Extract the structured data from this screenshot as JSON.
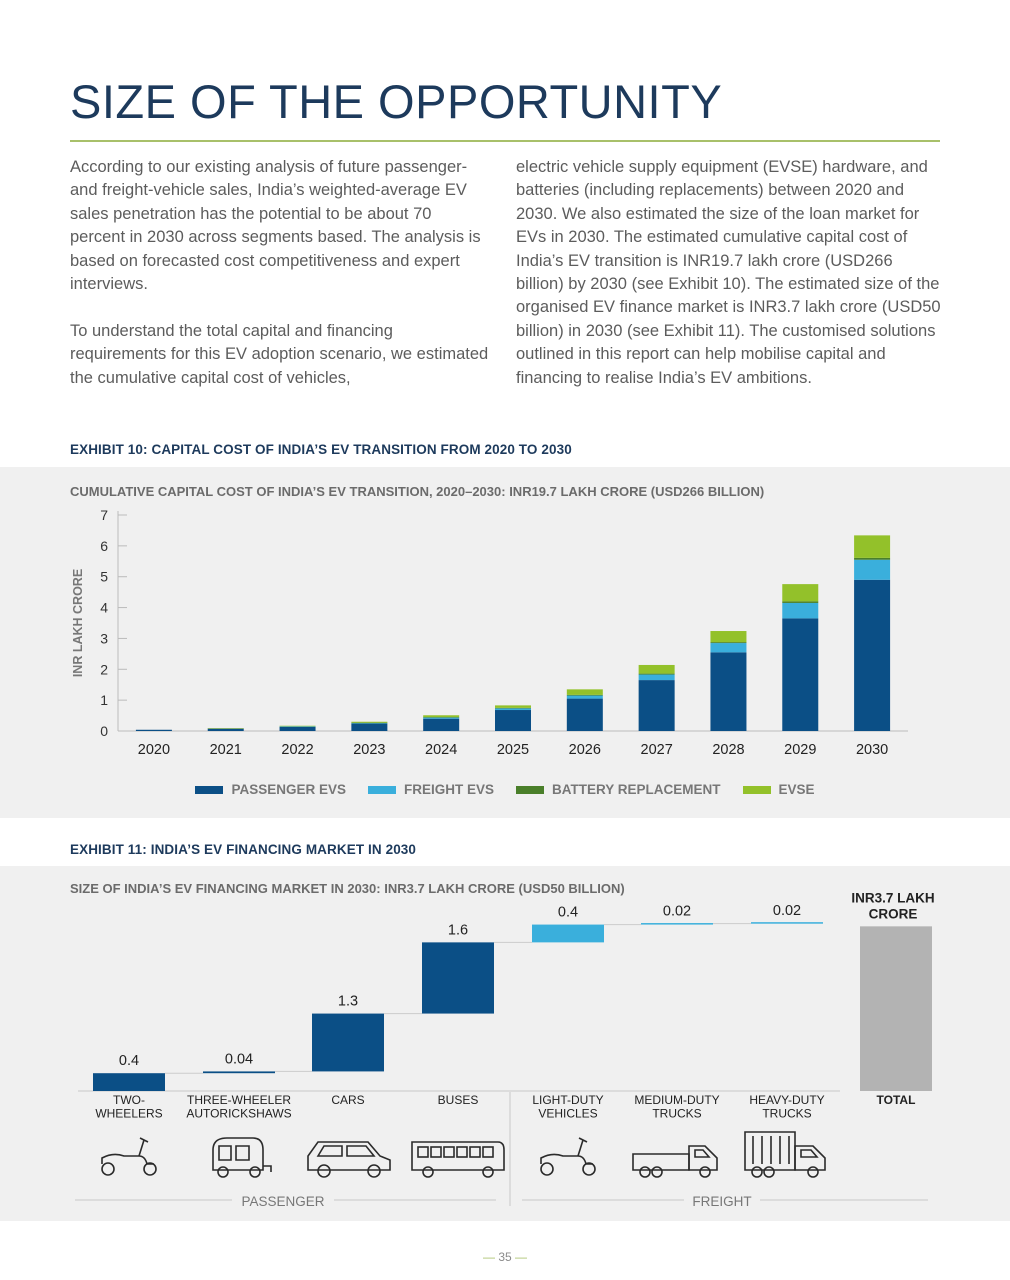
{
  "page": {
    "title": "SIZE OF THE OPPORTUNITY",
    "page_number": "35",
    "col1_p1": "According to our existing analysis of future passenger- and freight-vehicle sales, India’s weighted-average EV sales penetration has the potential to be about 70 percent in 2030 across segments based. The analysis is based on forecasted cost competitiveness and expert interviews.",
    "col1_p2": "To understand the total capital and financing requirements for this EV adoption scenario, we estimated the cumulative capital cost of vehicles,",
    "col2_p1": "electric vehicle supply equipment (EVSE) hardware, and batteries (including replacements) between 2020 and 2030. We also estimated the size of the loan market for EVs in 2030. The estimated cumulative capital cost of India’s EV transition is INR19.7 lakh crore (USD266 billion) by 2030 (see Exhibit 10). The estimated size of the organised EV finance market is INR3.7 lakh crore (USD50 billion) in 2030 (see Exhibit 11). The customised solutions outlined in this report can help mobilise capital and financing to realise India’s EV ambitions."
  },
  "exhibit10": {
    "heading": "EXHIBIT 10: CAPITAL COST OF INDIA’S EV TRANSITION FROM 2020 TO 2030"
  },
  "exhibit11": {
    "heading": "EXHIBIT 11: INDIA’S EV FINANCING MARKET IN 2030",
    "groups": [
      "PASSENGER",
      "FREIGHT"
    ]
  },
  "colors": {
    "passenger": "#0b4f86",
    "freight_evs": "#3aafdc",
    "battery": "#4a7f2a",
    "evse": "#93c12a",
    "total": "#b3b3b3"
  },
  "chart_data": [
    {
      "type": "bar",
      "stacked": true,
      "title": "CUMULATIVE CAPITAL COST OF INDIA’S EV TRANSITION, 2020–2030: INR19.7 LAKH CRORE (USD266 BILLION)",
      "ylabel": "INR LAKH CRORE",
      "ylim": [
        0,
        7
      ],
      "yticks": [
        0,
        1,
        2,
        3,
        4,
        5,
        6,
        7
      ],
      "categories": [
        "2020",
        "2021",
        "2022",
        "2023",
        "2024",
        "2025",
        "2026",
        "2027",
        "2028",
        "2029",
        "2030"
      ],
      "series": [
        {
          "name": "PASSENGER EVS",
          "values": [
            0.04,
            0.08,
            0.14,
            0.24,
            0.4,
            0.68,
            1.05,
            1.65,
            2.55,
            3.65,
            4.9
          ]
        },
        {
          "name": "FREIGHT EVS",
          "values": [
            0.0,
            0.0,
            0.01,
            0.02,
            0.04,
            0.06,
            0.1,
            0.18,
            0.3,
            0.5,
            0.65
          ]
        },
        {
          "name": "BATTERY REPLACEMENT",
          "values": [
            0.0,
            0.0,
            0.0,
            0.01,
            0.01,
            0.01,
            0.02,
            0.03,
            0.03,
            0.05,
            0.06
          ]
        },
        {
          "name": "EVSE",
          "values": [
            0.0,
            0.01,
            0.02,
            0.03,
            0.06,
            0.08,
            0.18,
            0.28,
            0.36,
            0.56,
            0.73
          ]
        }
      ],
      "legend": "bottom"
    },
    {
      "type": "bar",
      "waterfall": true,
      "title": "SIZE OF INDIA’S EV FINANCING MARKET IN 2030: INR3.7 LAKH CRORE (USD50 BILLION)",
      "categories": [
        "TWO-\nWHEELERS",
        "THREE-WHEELER\nAUTORICKSHAWS",
        "CARS",
        "BUSES",
        "LIGHT-DUTY\nVEHICLES",
        "MEDIUM-DUTY\nTRUCKS",
        "HEAVY-DUTY\nTRUCKS",
        "TOTAL"
      ],
      "values": [
        0.4,
        0.04,
        1.3,
        1.6,
        0.4,
        0.02,
        0.02,
        3.7
      ],
      "labels": [
        "0.4",
        "0.04",
        "1.3",
        "1.6",
        "0.4",
        "0.02",
        "0.02",
        "INR3.7 LAKH\nCRORE"
      ],
      "segments": [
        "passenger",
        "passenger",
        "passenger",
        "passenger",
        "freight",
        "freight",
        "freight",
        "total"
      ],
      "icons": [
        "scooter-icon",
        "autorickshaw-icon",
        "car-icon",
        "bus-icon",
        "scooter-icon",
        "truck-icon",
        "heavy-truck-icon"
      ]
    }
  ]
}
